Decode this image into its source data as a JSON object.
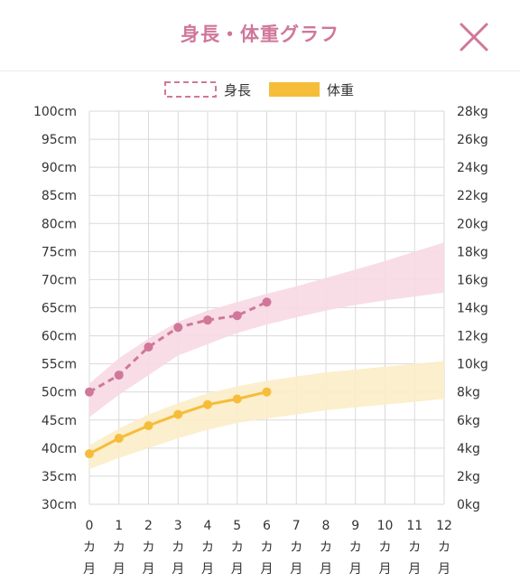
{
  "header": {
    "title": "身長・体重グラフ",
    "close_icon": "close-icon"
  },
  "colors": {
    "height": "#d0779a",
    "height_band": "#f7d9e3",
    "weight": "#f5bd3a",
    "weight_band": "#fcedc8",
    "title": "#d0779a",
    "grid": "#d9d9d9"
  },
  "chart_data": {
    "type": "line",
    "x": [
      0,
      1,
      2,
      3,
      4,
      5,
      6,
      7,
      8,
      9,
      10,
      11,
      12
    ],
    "xticks": [
      {
        "num": "0",
        "c1": "カ",
        "c2": "月"
      },
      {
        "num": "1",
        "c1": "カ",
        "c2": "月"
      },
      {
        "num": "2",
        "c1": "カ",
        "c2": "月"
      },
      {
        "num": "3",
        "c1": "カ",
        "c2": "月"
      },
      {
        "num": "4",
        "c1": "カ",
        "c2": "月"
      },
      {
        "num": "5",
        "c1": "カ",
        "c2": "月"
      },
      {
        "num": "6",
        "c1": "カ",
        "c2": "月"
      },
      {
        "num": "7",
        "c1": "カ",
        "c2": "月"
      },
      {
        "num": "8",
        "c1": "カ",
        "c2": "月"
      },
      {
        "num": "9",
        "c1": "カ",
        "c2": "月"
      },
      {
        "num": "10",
        "c1": "カ",
        "c2": "月"
      },
      {
        "num": "11",
        "c1": "カ",
        "c2": "月"
      },
      {
        "num": "12",
        "c1": "カ",
        "c2": "月"
      }
    ],
    "xlim": [
      0,
      12
    ],
    "y_left": {
      "lim": [
        30,
        100
      ],
      "ticks": [
        "30cm",
        "35cm",
        "40cm",
        "45cm",
        "50cm",
        "55cm",
        "60cm",
        "65cm",
        "70cm",
        "75cm",
        "80cm",
        "85cm",
        "90cm",
        "95cm",
        "100cm"
      ]
    },
    "y_right": {
      "lim": [
        0,
        28
      ],
      "ticks": [
        "0kg",
        "2kg",
        "4kg",
        "6kg",
        "8kg",
        "10kg",
        "12kg",
        "14kg",
        "16kg",
        "18kg",
        "20kg",
        "22kg",
        "24kg",
        "26kg",
        "28kg"
      ]
    },
    "grid": true,
    "legend": {
      "position": "top-center",
      "items": [
        "身長",
        "体重"
      ]
    },
    "series": [
      {
        "name": "身長",
        "axis": "left",
        "style": "dashed",
        "x": [
          0,
          1,
          2,
          3,
          4,
          5,
          6
        ],
        "values": [
          50.0,
          53.0,
          58.0,
          61.5,
          62.8,
          63.6,
          66.0
        ],
        "band_x": [
          0,
          1,
          2,
          3,
          4,
          5,
          6,
          7,
          8,
          9,
          10,
          11,
          12
        ],
        "band_lower": [
          45.5,
          49.5,
          53.0,
          56.5,
          58.5,
          60.5,
          62.0,
          63.3,
          64.5,
          65.5,
          66.3,
          67.0,
          67.7
        ],
        "band_upper": [
          51.5,
          56.0,
          59.5,
          62.5,
          64.5,
          66.0,
          67.5,
          68.8,
          70.3,
          71.8,
          73.3,
          75.0,
          76.6
        ]
      },
      {
        "name": "体重",
        "axis": "right",
        "style": "solid",
        "x": [
          0,
          1,
          2,
          3,
          4,
          5,
          6
        ],
        "values": [
          3.6,
          4.7,
          5.6,
          6.4,
          7.1,
          7.5,
          8.0
        ],
        "band_x": [
          0,
          1,
          2,
          3,
          4,
          5,
          6,
          7,
          8,
          9,
          10,
          11,
          12
        ],
        "band_lower": [
          2.5,
          3.3,
          4.0,
          4.7,
          5.3,
          5.8,
          6.1,
          6.4,
          6.7,
          6.9,
          7.1,
          7.3,
          7.5
        ],
        "band_upper": [
          4.2,
          5.4,
          6.4,
          7.2,
          7.9,
          8.4,
          8.8,
          9.1,
          9.4,
          9.6,
          9.8,
          10.0,
          10.2
        ]
      }
    ]
  }
}
